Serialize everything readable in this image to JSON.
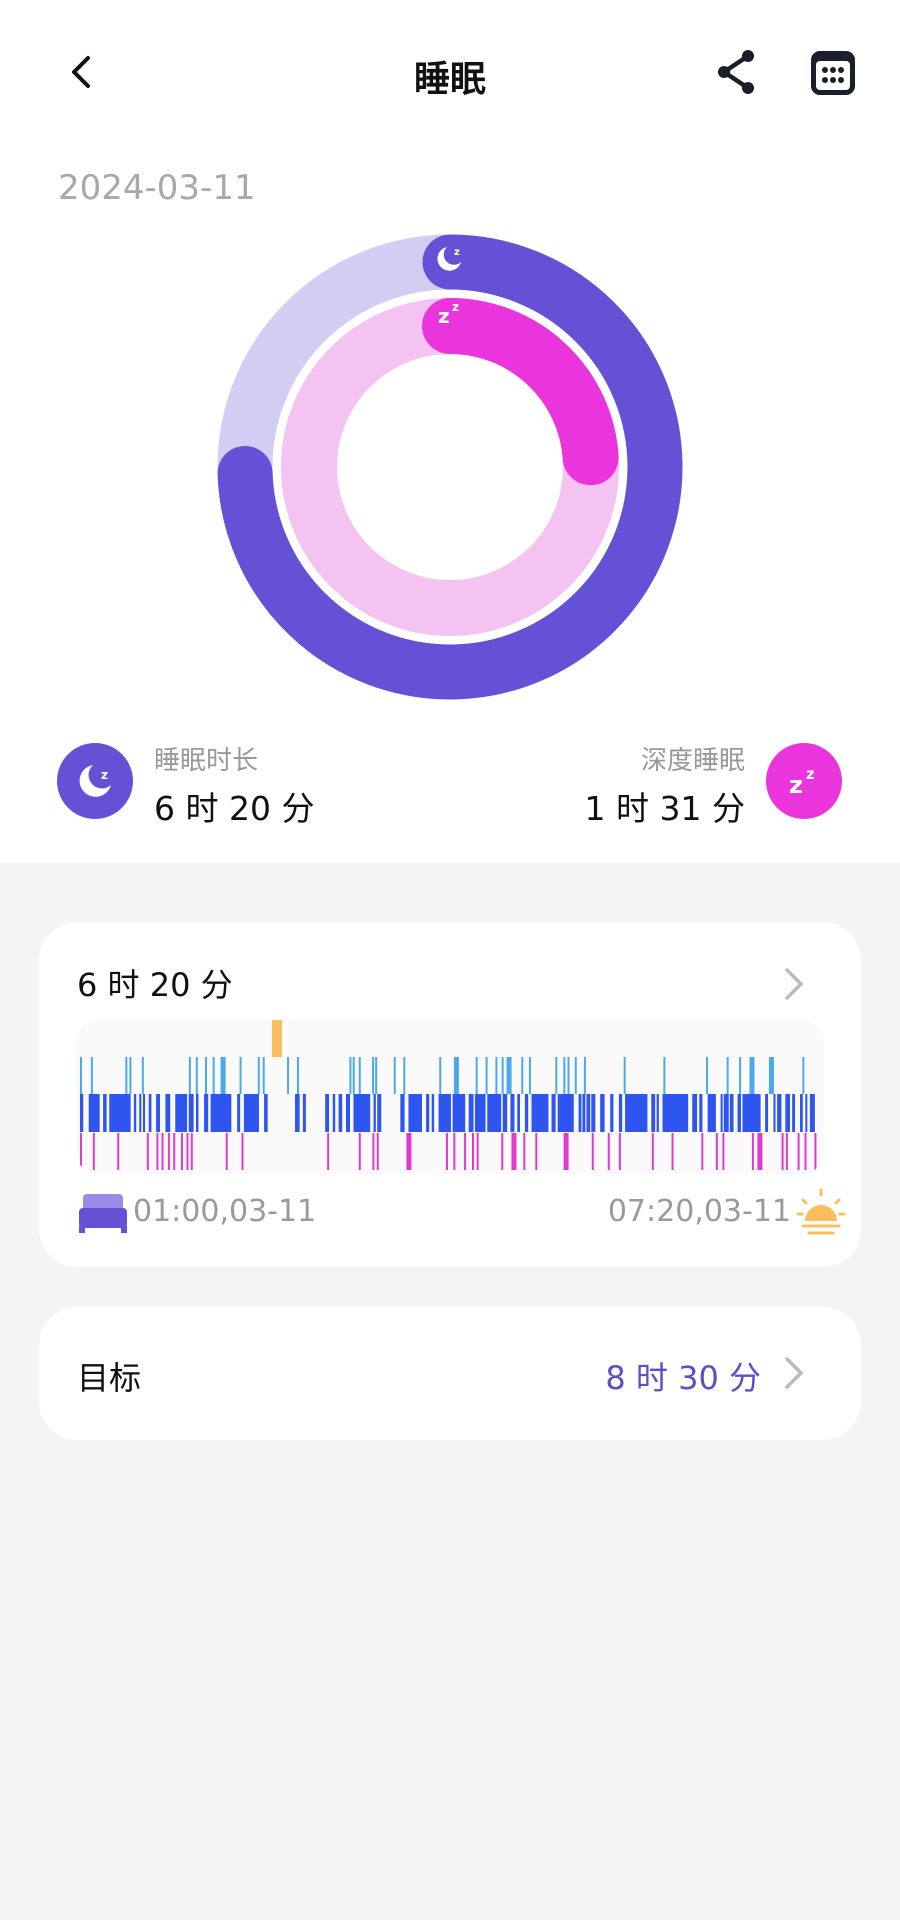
{
  "header": {
    "title": "睡眠",
    "back_icon": "chevron-left-icon",
    "share_icon": "share-icon",
    "calendar_icon": "calendar-icon"
  },
  "date": "2024-03-11",
  "ring": {
    "sleep_fraction_of_goal": 0.745,
    "deep_fraction_of_sleep": 0.239,
    "colors": {
      "sleep": "#6451D6",
      "sleep_track": "#D3CDF3",
      "deep": "#E935DB",
      "deep_track": "#F5C3F1"
    }
  },
  "summary": {
    "duration": {
      "label": "睡眠时长",
      "value": "6 时 20 分",
      "icon": "moon-icon"
    },
    "deep": {
      "label": "深度睡眠",
      "value": "1 时 31 分",
      "icon": "zzz-icon"
    }
  },
  "detail_card": {
    "title": "6 时 20 分",
    "start": "01:00,03-11",
    "end": "07:20,03-11",
    "stage_colors": {
      "awake": "#FBBE5E",
      "rem": "#4CA8E8",
      "light": "#2F55F0",
      "deep": "#E03ACF"
    }
  },
  "goal_card": {
    "label": "目标",
    "value": "8 时 30 分",
    "accent": "#5B4FC8"
  }
}
